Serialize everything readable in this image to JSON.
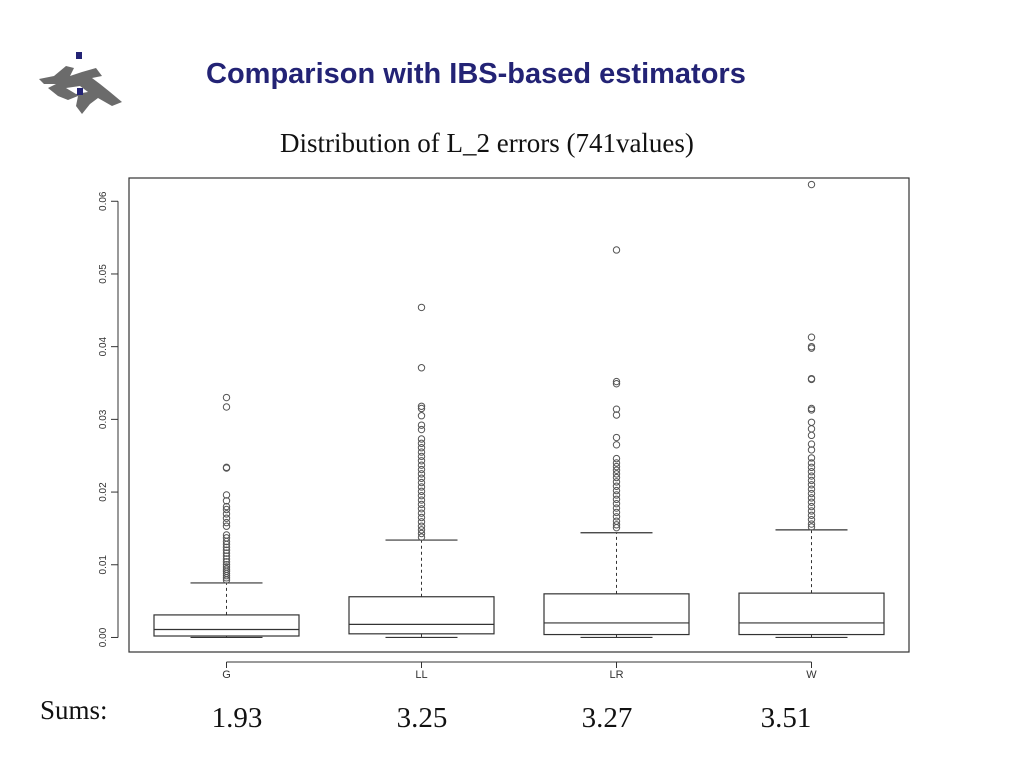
{
  "slide": {
    "title": "Comparison with IBS-based estimators"
  },
  "chart_data": {
    "type": "boxplot",
    "title": "Distribution of L_2 errors (741values)",
    "xlabel": "",
    "ylabel": "",
    "ylim": [
      -0.002,
      0.0632
    ],
    "yticks": [
      0.0,
      0.01,
      0.02,
      0.03,
      0.04,
      0.05,
      0.06
    ],
    "ytick_labels": [
      "0.00",
      "0.01",
      "0.02",
      "0.03",
      "0.04",
      "0.05",
      "0.06"
    ],
    "grid": false,
    "categories": [
      "G",
      "LL",
      "LR",
      "W"
    ],
    "boxes": [
      {
        "name": "G",
        "whisker_low": 0.0,
        "q1": 0.0002,
        "median": 0.0011,
        "q3": 0.0031,
        "whisker_high": 0.0075,
        "outliers": [
          0.033,
          0.0317,
          0.0234,
          0.0233,
          0.0196,
          0.0188,
          0.018,
          0.0176,
          0.017,
          0.0164,
          0.0158,
          0.0153,
          0.0141,
          0.0137,
          0.0132,
          0.0128,
          0.0124,
          0.012,
          0.0116,
          0.0112,
          0.0108,
          0.0104,
          0.01,
          0.0097,
          0.0094,
          0.0091,
          0.0088,
          0.0085,
          0.0082,
          0.0079
        ]
      },
      {
        "name": "LL",
        "whisker_low": 0.0,
        "q1": 0.0005,
        "median": 0.0018,
        "q3": 0.0056,
        "whisker_high": 0.0134,
        "outliers": [
          0.0454,
          0.0371,
          0.0318,
          0.0315,
          0.0305,
          0.0292,
          0.0286,
          0.0273,
          0.0267,
          0.0261,
          0.0255,
          0.0249,
          0.0243,
          0.0237,
          0.0231,
          0.0225,
          0.0219,
          0.0213,
          0.0207,
          0.0201,
          0.0195,
          0.0189,
          0.0183,
          0.0177,
          0.0171,
          0.0165,
          0.0159,
          0.0153,
          0.0148,
          0.0143,
          0.0138
        ]
      },
      {
        "name": "LR",
        "whisker_low": 0.0,
        "q1": 0.0004,
        "median": 0.002,
        "q3": 0.006,
        "whisker_high": 0.0144,
        "outliers": [
          0.0533,
          0.0352,
          0.0349,
          0.0314,
          0.0306,
          0.0275,
          0.0265,
          0.0246,
          0.024,
          0.0235,
          0.023,
          0.0225,
          0.022,
          0.0214,
          0.0208,
          0.0202,
          0.0196,
          0.019,
          0.0184,
          0.0178,
          0.0172,
          0.0166,
          0.016,
          0.0155,
          0.0151
        ]
      },
      {
        "name": "W",
        "whisker_low": 0.0,
        "q1": 0.0004,
        "median": 0.002,
        "q3": 0.0061,
        "whisker_high": 0.0148,
        "outliers": [
          0.0623,
          0.0413,
          0.04,
          0.0398,
          0.0356,
          0.0355,
          0.0315,
          0.0313,
          0.0296,
          0.0287,
          0.0278,
          0.0266,
          0.0258,
          0.0247,
          0.024,
          0.0234,
          0.0228,
          0.0222,
          0.0216,
          0.021,
          0.0204,
          0.0198,
          0.0192,
          0.0186,
          0.018,
          0.0174,
          0.0168,
          0.0162,
          0.0156,
          0.0152
        ]
      }
    ]
  },
  "sums": {
    "label": "Sums:",
    "values": [
      {
        "category": "G",
        "value": "1.93"
      },
      {
        "category": "LL",
        "value": "3.25"
      },
      {
        "category": "LR",
        "value": "3.27"
      },
      {
        "category": "W",
        "value": "3.51"
      }
    ]
  },
  "colors": {
    "title": "#232375",
    "logo": "#6b6b6b",
    "logo_dots": "#232375",
    "plot_line": "#333333",
    "outlier": "#555555"
  }
}
